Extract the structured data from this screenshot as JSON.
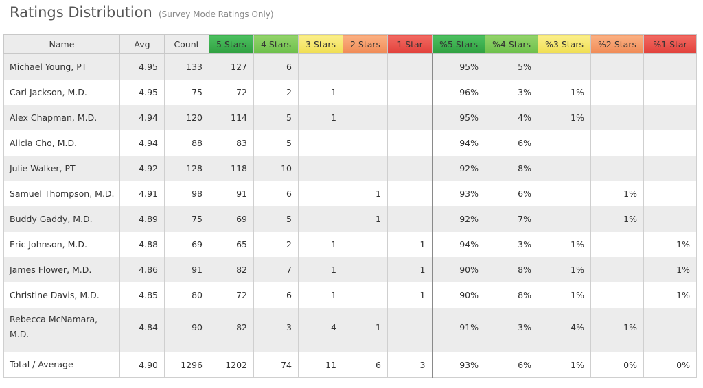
{
  "header": {
    "title": "Ratings Distribution",
    "subtitle": "(Survey Mode Ratings Only)"
  },
  "columns": [
    "Name",
    "Avg",
    "Count",
    "5 Stars",
    "4 Stars",
    "3 Stars",
    "2 Stars",
    "1 Star",
    "%5 Stars",
    "%4 Stars",
    "%3 Stars",
    "%2 Stars",
    "%1 Star"
  ],
  "header_colors": {
    "5 Stars": "#3aae4c",
    "4 Stars": "#7fc957",
    "3 Stars": "#f5e56a",
    "2 Stars": "#f59e6a",
    "1 Star": "#e8524c"
  },
  "rows": [
    [
      "Michael Young, PT",
      "4.95",
      "133",
      "127",
      "6",
      "",
      "",
      "",
      "95%",
      "5%",
      "",
      "",
      ""
    ],
    [
      "Carl Jackson, M.D.",
      "4.95",
      "75",
      "72",
      "2",
      "1",
      "",
      "",
      "96%",
      "3%",
      "1%",
      "",
      ""
    ],
    [
      "Alex Chapman, M.D.",
      "4.94",
      "120",
      "114",
      "5",
      "1",
      "",
      "",
      "95%",
      "4%",
      "1%",
      "",
      ""
    ],
    [
      "Alicia Cho, M.D.",
      "4.94",
      "88",
      "83",
      "5",
      "",
      "",
      "",
      "94%",
      "6%",
      "",
      "",
      ""
    ],
    [
      "Julie Walker, PT",
      "4.92",
      "128",
      "118",
      "10",
      "",
      "",
      "",
      "92%",
      "8%",
      "",
      "",
      ""
    ],
    [
      "Samuel Thompson, M.D.",
      "4.91",
      "98",
      "91",
      "6",
      "",
      "1",
      "",
      "93%",
      "6%",
      "",
      "1%",
      ""
    ],
    [
      "Buddy Gaddy, M.D.",
      "4.89",
      "75",
      "69",
      "5",
      "",
      "1",
      "",
      "92%",
      "7%",
      "",
      "1%",
      ""
    ],
    [
      "Eric Johnson, M.D.",
      "4.88",
      "69",
      "65",
      "2",
      "1",
      "",
      "1",
      "94%",
      "3%",
      "1%",
      "",
      "1%"
    ],
    [
      "James Flower, M.D.",
      "4.86",
      "91",
      "82",
      "7",
      "1",
      "",
      "1",
      "90%",
      "8%",
      "1%",
      "",
      "1%"
    ],
    [
      "Christine Davis, M.D.",
      "4.85",
      "80",
      "72",
      "6",
      "1",
      "",
      "1",
      "90%",
      "8%",
      "1%",
      "",
      "1%"
    ],
    [
      "Rebecca McNamara, M.D.",
      "4.84",
      "90",
      "82",
      "3",
      "4",
      "1",
      "",
      "91%",
      "3%",
      "4%",
      "1%",
      ""
    ]
  ],
  "total": [
    "Total / Average",
    "4.90",
    "1296",
    "1202",
    "74",
    "11",
    "6",
    "3",
    "93%",
    "6%",
    "1%",
    "0%",
    "0%"
  ]
}
